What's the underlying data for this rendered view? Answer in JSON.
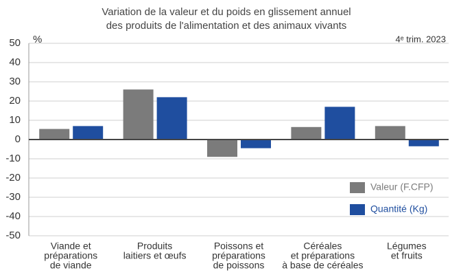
{
  "chart_data": {
    "type": "bar",
    "title": [
      "Variation de la valeur et du poids en glissement annuel",
      "des produits de l'alimentation et des animaux vivants"
    ],
    "y_label": "%",
    "annotation": "4ᵉ trim. 2023",
    "categories": [
      [
        "Viande et",
        "préparations",
        "de viande"
      ],
      [
        "Produits",
        "laitiers et œufs"
      ],
      [
        "Poissons et",
        "préparations",
        "de poissons"
      ],
      [
        "Céréales",
        "et préparations",
        "à base de céréales"
      ],
      [
        "Légumes",
        "et fruits"
      ]
    ],
    "series": [
      {
        "name": "Valeur (F.CFP)",
        "color": "#7b7b7b",
        "values": [
          5.5,
          26,
          -9,
          6.5,
          7
        ]
      },
      {
        "name": "Quantité (Kg)",
        "color": "#1f4e9f",
        "values": [
          7,
          22,
          -4.5,
          17,
          -3.5
        ]
      }
    ],
    "ylim": [
      -50,
      50
    ],
    "yticks": [
      -50,
      -40,
      -30,
      -20,
      -10,
      0,
      10,
      20,
      30,
      40,
      50
    ],
    "grid": true,
    "legend": "lower right"
  }
}
